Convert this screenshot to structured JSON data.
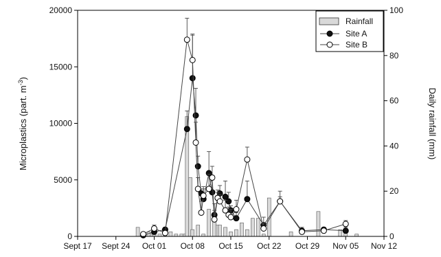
{
  "chart_data": {
    "type": "bar+line",
    "title": "",
    "x_axis": {
      "tick_labels": [
        "Sept 17",
        "Sept 24",
        "Oct 01",
        "Oct 08",
        "Oct 15",
        "Oct 22",
        "Oct 29",
        "Nov 05",
        "Nov 12"
      ],
      "range_days": [
        0,
        56
      ]
    },
    "y_left": {
      "label": "Microplastics (part. m⁻³)",
      "label_base": "Microplastics (part. m",
      "label_sup": "-3",
      "label_close": ")",
      "range": [
        0,
        20000
      ],
      "ticks": [
        "0",
        "5000",
        "10000",
        "15000",
        "20000"
      ]
    },
    "y_right": {
      "label": "Daily rainfall (mm)",
      "range": [
        0,
        100
      ],
      "ticks": [
        "0",
        "20",
        "40",
        "60",
        "80",
        "100"
      ]
    },
    "legend": {
      "position": "top-right",
      "entries": [
        "Rainfall",
        "Site A",
        "Site B"
      ]
    },
    "rainfall": {
      "name": "Rainfall",
      "date_offset": [
        11,
        12,
        13,
        13.6,
        14,
        15,
        16,
        17,
        18,
        19,
        19.6,
        20,
        20.6,
        21,
        22,
        23,
        24,
        25,
        25.6,
        26,
        27,
        28,
        29,
        30,
        31,
        32,
        33,
        34,
        35,
        39,
        44,
        48,
        49,
        51
      ],
      "values": [
        4,
        1,
        2,
        1,
        3,
        1,
        2,
        2,
        1,
        1,
        1,
        53,
        26,
        3,
        5,
        1,
        12,
        7,
        5,
        5,
        4,
        2,
        3,
        6,
        3,
        8,
        8,
        1,
        17,
        2,
        11,
        3,
        3,
        1
      ]
    },
    "series": [
      {
        "name": "Site A",
        "marker": "filled-circle",
        "x": [
          12,
          14,
          16,
          20,
          21,
          21.6,
          22,
          22.6,
          23,
          24,
          24.6,
          25,
          25.6,
          26,
          27,
          27.6,
          28,
          29,
          31,
          34,
          37,
          41,
          45,
          49
        ],
        "y": [
          100,
          400,
          600,
          9500,
          14000,
          10700,
          6200,
          3800,
          3300,
          5600,
          3900,
          1900,
          3400,
          3800,
          3500,
          3100,
          2300,
          1600,
          3300,
          1000,
          3100,
          500,
          600,
          500
        ],
        "err": [
          150,
          200,
          200,
          1600,
          3800,
          2400,
          900,
          400,
          900,
          1900,
          1100,
          1000,
          700,
          700,
          1400,
          800,
          400,
          500,
          1600,
          700,
          900,
          300,
          200,
          300
        ]
      },
      {
        "name": "Site B",
        "marker": "open-circle",
        "x": [
          12,
          14,
          16,
          20,
          21,
          21.6,
          22,
          22.6,
          23,
          24,
          24.6,
          25,
          25.6,
          26,
          27,
          27.6,
          28,
          29,
          31,
          34,
          37,
          41,
          45,
          49
        ],
        "y": [
          200,
          700,
          300,
          17400,
          15600,
          8300,
          4200,
          2100,
          3600,
          4200,
          5200,
          1500,
          3400,
          3100,
          2300,
          1900,
          1700,
          2400,
          6800,
          700,
          3100,
          400,
          500,
          1100
        ],
        "err": [
          150,
          300,
          200,
          1900,
          2300,
          1800,
          1000,
          1000,
          800,
          1300,
          1000,
          800,
          500,
          600,
          900,
          700,
          700,
          800,
          1100,
          500,
          400,
          200,
          200,
          300
        ]
      }
    ]
  }
}
